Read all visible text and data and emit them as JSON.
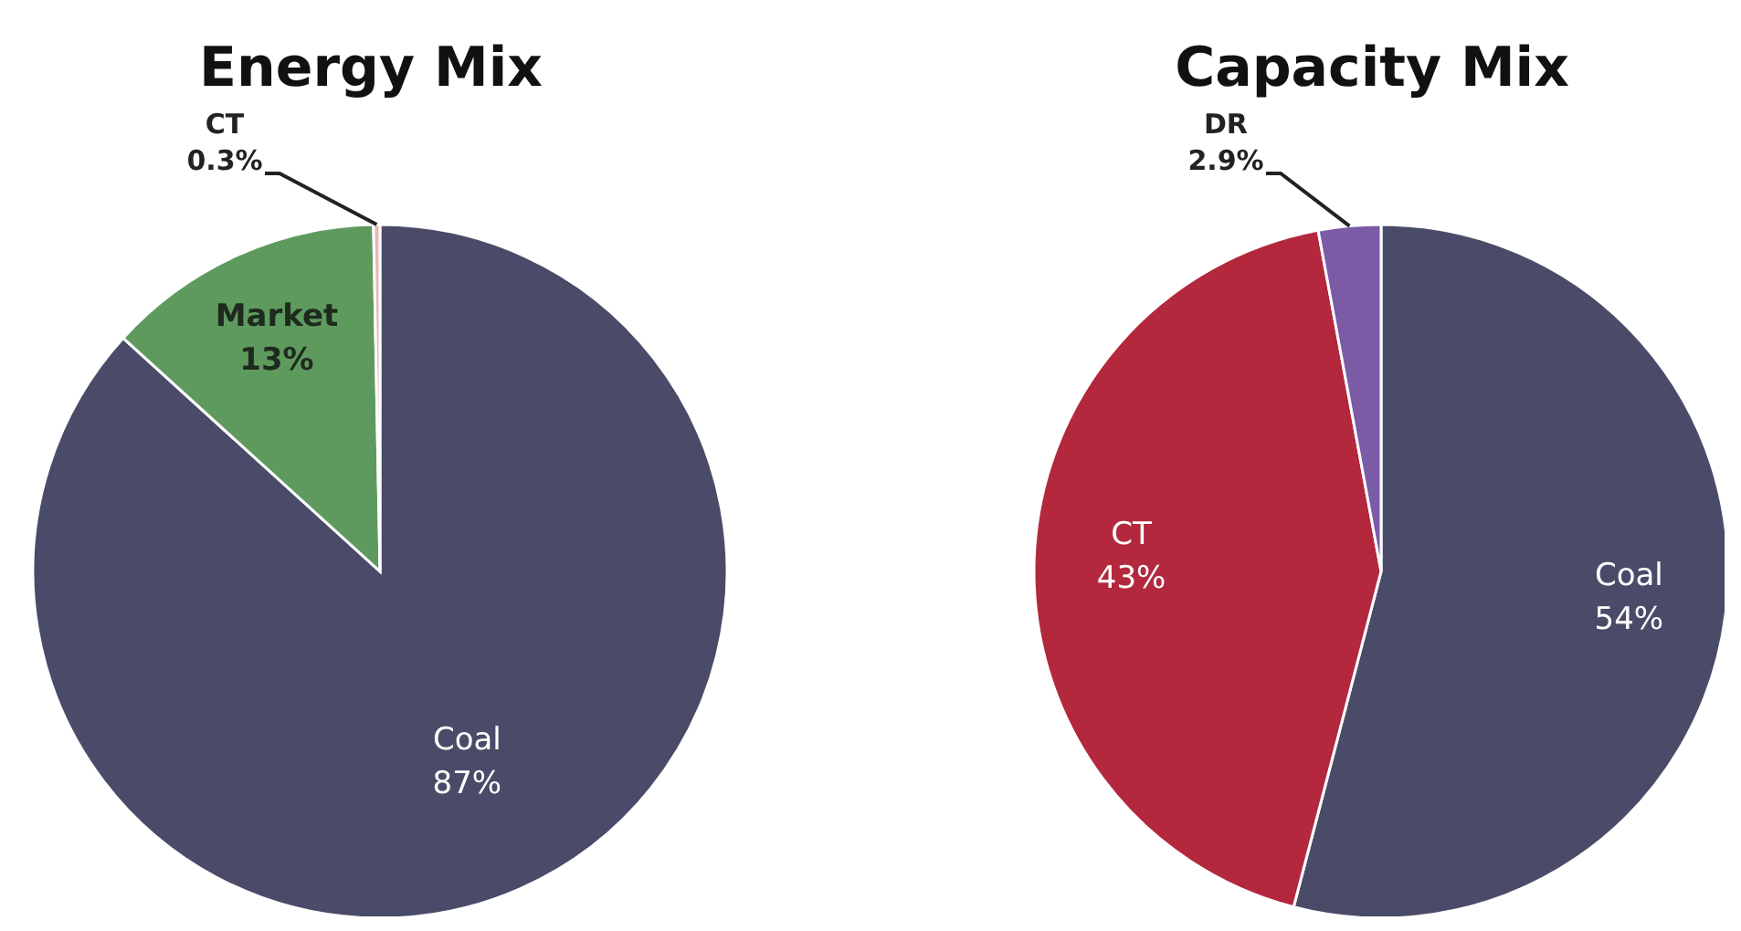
{
  "chart_data": [
    {
      "type": "pie",
      "title": "Energy Mix",
      "categories": [
        "Coal",
        "Market",
        "CT"
      ],
      "values": [
        87,
        13,
        0.3
      ],
      "value_labels": [
        "87%",
        "13%",
        "0.3%"
      ],
      "colors": [
        "#4a4b68",
        "#5e9a5e",
        "#e8b8b8"
      ]
    },
    {
      "type": "pie",
      "title": "Capacity Mix",
      "categories": [
        "Coal",
        "CT",
        "DR"
      ],
      "values": [
        54,
        43,
        2.9
      ],
      "value_labels": [
        "54%",
        "43%",
        "2.9%"
      ],
      "colors": [
        "#4a4b68",
        "#b3283d",
        "#7b5aa6"
      ]
    }
  ]
}
